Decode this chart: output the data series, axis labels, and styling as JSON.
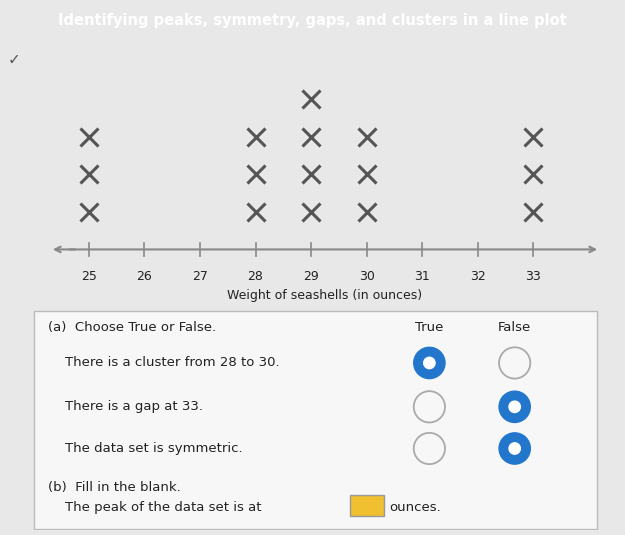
{
  "title": "Identifying peaks, symmetry, gaps, and clusters in a line plot",
  "title_bg_color": "#5bc8d0",
  "title_text_color": "white",
  "xlabel": "Weight of seashells (in ounces)",
  "x_min": 24.3,
  "x_max": 34.2,
  "x_ticks": [
    25,
    26,
    27,
    28,
    29,
    30,
    31,
    32,
    33
  ],
  "data": {
    "25": 3,
    "26": 0,
    "27": 0,
    "28": 3,
    "29": 4,
    "30": 3,
    "31": 0,
    "32": 0,
    "33": 3
  },
  "marker_color": "#555555",
  "marker_size": 13,
  "marker_linewidth": 2.2,
  "bg_color": "#e8e8e8",
  "plot_bg_color": "#eeeeee",
  "box_bg_color": "#f7f7f7",
  "box_border_color": "#bbbbbb",
  "part_a_label": "(a)  Choose True or False.",
  "true_label": "True",
  "false_label": "False",
  "statements": [
    "There is a cluster from 28 to 30.",
    "There is a gap at 33.",
    "The data set is symmetric."
  ],
  "true_selected": [
    true,
    false,
    false
  ],
  "false_selected": [
    false,
    true,
    true
  ],
  "part_b_label": "(b)  Fill in the blank.",
  "part_b_text": "The peak of the data set is at",
  "part_b_units": "ounces.",
  "radio_color_filled": "#2277cc",
  "radio_color_empty": "#aaaaaa",
  "text_color": "#222222",
  "font_size_title": 10.5,
  "font_size_axis": 9,
  "font_size_box": 9.5
}
